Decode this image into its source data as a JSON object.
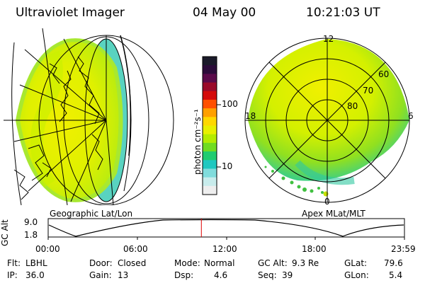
{
  "header": {
    "instrument": "Ultraviolet Imager",
    "date": "04 May 00",
    "time": "10:21:03 UT"
  },
  "colorbar": {
    "unit_label": "photon cm⁻²s⁻¹",
    "ticks": [
      "100",
      "10"
    ],
    "colors": [
      "#1a1a2a",
      "#2b0b3a",
      "#5a0a4a",
      "#9a0a2a",
      "#d40a0a",
      "#ff5000",
      "#ffa000",
      "#ffd800",
      "#e8f000",
      "#b4ec00",
      "#70dc20",
      "#20cc70",
      "#20c8c0",
      "#80dcdc",
      "#c8ecec",
      "#eeeeee"
    ]
  },
  "panels": {
    "left_label": "Geographic Lat/Lon",
    "right_label": "Apex MLat/MLT"
  },
  "polar": {
    "mlt_labels": {
      "top": "12",
      "left": "18",
      "right": "6",
      "bottom": "0"
    },
    "lat_labels": [
      "60",
      "70",
      "80"
    ]
  },
  "altitude_plot": {
    "axis_label": "GC Alt",
    "y_ticks": [
      "9.0",
      "1.8"
    ],
    "x_ticks": [
      "00:00",
      "06:00",
      "12:00",
      "18:00",
      "23:59"
    ],
    "current_time_fraction": 0.43,
    "marker_color": "#e00000"
  },
  "status": {
    "filter_label": "Flt:",
    "filter": "LBHL",
    "ip_label": "IP:",
    "ip": "36.0",
    "door_label": "Door:",
    "door": "Closed",
    "gain_label": "Gain:",
    "gain": "13",
    "mode_label": "Mode:",
    "mode": "Normal",
    "dsp_label": "Dsp:",
    "dsp": "4.6",
    "gcalt_label": "GC Alt:",
    "gcalt": "9.3 Re",
    "seq_label": "Seq:",
    "seq": "39",
    "glat_label": "GLat:",
    "glat": "79.6",
    "glon_label": "GLon:",
    "glon": "5.4"
  }
}
